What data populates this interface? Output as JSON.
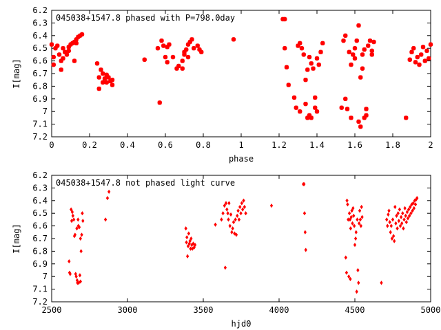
{
  "chart_data": [
    {
      "type": "scatter",
      "title": "045038+1547.8 phased with P=798.0day",
      "xlabel": "phase",
      "ylabel": "I[mag]",
      "xlim": [
        0,
        2
      ],
      "ylim": [
        7.2,
        6.2
      ],
      "y_inverted": true,
      "xticks": [
        "0",
        "0.2",
        "0.4",
        "0.6",
        "0.8",
        "1",
        "1.2",
        "1.4",
        "1.6",
        "1.8",
        "2"
      ],
      "yticks": [
        "6.2",
        "6.3",
        "6.4",
        "6.5",
        "6.6",
        "6.7",
        "6.8",
        "6.9",
        "7",
        "7.1",
        "7.2"
      ],
      "marker": "asterisk",
      "color": "#ff0000",
      "points": [
        [
          0.0,
          6.47
        ],
        [
          0.01,
          6.57
        ],
        [
          0.01,
          6.63
        ],
        [
          0.02,
          6.5
        ],
        [
          0.03,
          6.48
        ],
        [
          0.04,
          6.55
        ],
        [
          0.05,
          6.6
        ],
        [
          0.05,
          6.67
        ],
        [
          0.06,
          6.5
        ],
        [
          0.07,
          6.53
        ],
        [
          0.08,
          6.55
        ],
        [
          0.09,
          6.49
        ],
        [
          0.1,
          6.47
        ],
        [
          0.11,
          6.46
        ],
        [
          0.12,
          6.45
        ],
        [
          0.13,
          6.43
        ],
        [
          0.14,
          6.41
        ],
        [
          0.15,
          6.4
        ],
        [
          0.16,
          6.39
        ],
        [
          0.12,
          6.6
        ],
        [
          0.06,
          6.58
        ],
        [
          0.09,
          6.52
        ],
        [
          0.13,
          6.46
        ],
        [
          0.24,
          6.62
        ],
        [
          0.25,
          6.73
        ],
        [
          0.25,
          6.82
        ],
        [
          0.26,
          6.67
        ],
        [
          0.27,
          6.7
        ],
        [
          0.28,
          6.74
        ],
        [
          0.29,
          6.77
        ],
        [
          0.3,
          6.73
        ],
        [
          0.31,
          6.76
        ],
        [
          0.32,
          6.75
        ],
        [
          0.27,
          6.77
        ],
        [
          0.29,
          6.71
        ],
        [
          0.32,
          6.79
        ],
        [
          0.49,
          6.59
        ],
        [
          0.56,
          6.5
        ],
        [
          0.57,
          6.93
        ],
        [
          0.58,
          6.44
        ],
        [
          0.59,
          6.48
        ],
        [
          0.6,
          6.57
        ],
        [
          0.61,
          6.61
        ],
        [
          0.61,
          6.49
        ],
        [
          0.62,
          6.47
        ],
        [
          0.64,
          6.57
        ],
        [
          0.66,
          6.66
        ],
        [
          0.67,
          6.64
        ],
        [
          0.69,
          6.66
        ],
        [
          0.69,
          6.6
        ],
        [
          0.7,
          6.53
        ],
        [
          0.71,
          6.51
        ],
        [
          0.72,
          6.47
        ],
        [
          0.73,
          6.45
        ],
        [
          0.74,
          6.43
        ],
        [
          0.75,
          6.5
        ],
        [
          0.7,
          6.55
        ],
        [
          0.72,
          6.57
        ],
        [
          0.77,
          6.48
        ],
        [
          0.78,
          6.51
        ],
        [
          0.79,
          6.53
        ],
        [
          0.96,
          6.43
        ],
        [
          1.22,
          6.27
        ],
        [
          1.23,
          6.27
        ],
        [
          1.23,
          6.5
        ],
        [
          1.24,
          6.65
        ],
        [
          1.25,
          6.79
        ],
        [
          1.28,
          6.89
        ],
        [
          1.29,
          6.97
        ],
        [
          1.3,
          6.48
        ],
        [
          1.31,
          6.46
        ],
        [
          1.31,
          7.0
        ],
        [
          1.32,
          6.5
        ],
        [
          1.33,
          6.55
        ],
        [
          1.34,
          6.94
        ],
        [
          1.35,
          7.05
        ],
        [
          1.35,
          6.67
        ],
        [
          1.36,
          7.03
        ],
        [
          1.36,
          6.57
        ],
        [
          1.37,
          7.05
        ],
        [
          1.38,
          6.66
        ],
        [
          1.39,
          6.97
        ],
        [
          1.39,
          6.89
        ],
        [
          1.4,
          7.0
        ],
        [
          1.4,
          6.58
        ],
        [
          1.41,
          6.63
        ],
        [
          1.42,
          6.53
        ],
        [
          1.43,
          6.46
        ],
        [
          1.34,
          6.75
        ],
        [
          1.37,
          6.62
        ],
        [
          1.53,
          6.97
        ],
        [
          1.54,
          6.44
        ],
        [
          1.55,
          6.9
        ],
        [
          1.56,
          6.98
        ],
        [
          1.57,
          6.53
        ],
        [
          1.58,
          7.05
        ],
        [
          1.59,
          6.55
        ],
        [
          1.6,
          6.5
        ],
        [
          1.61,
          6.44
        ],
        [
          1.62,
          6.32
        ],
        [
          1.63,
          7.12
        ],
        [
          1.64,
          6.66
        ],
        [
          1.64,
          6.55
        ],
        [
          1.65,
          6.51
        ],
        [
          1.66,
          6.98
        ],
        [
          1.66,
          7.03
        ],
        [
          1.67,
          6.48
        ],
        [
          1.68,
          6.44
        ],
        [
          1.69,
          6.52
        ],
        [
          1.55,
          6.4
        ],
        [
          1.58,
          6.63
        ],
        [
          1.6,
          6.58
        ],
        [
          1.62,
          7.08
        ],
        [
          1.63,
          6.73
        ],
        [
          1.65,
          7.05
        ],
        [
          1.69,
          6.55
        ],
        [
          1.7,
          6.45
        ],
        [
          1.87,
          7.05
        ],
        [
          1.89,
          6.59
        ],
        [
          1.9,
          6.53
        ],
        [
          1.91,
          6.5
        ],
        [
          1.92,
          6.61
        ],
        [
          1.93,
          6.57
        ],
        [
          1.94,
          6.63
        ],
        [
          1.95,
          6.55
        ],
        [
          1.96,
          6.49
        ],
        [
          1.97,
          6.6
        ],
        [
          1.98,
          6.52
        ],
        [
          1.99,
          6.58
        ],
        [
          2.0,
          6.47
        ]
      ]
    },
    {
      "type": "scatter",
      "title": "045038+1547.8 not phased light curve",
      "xlabel": "hjd0",
      "ylabel": "I[mag]",
      "xlim": [
        2500,
        5000
      ],
      "ylim": [
        7.2,
        6.2
      ],
      "y_inverted": true,
      "xticks": [
        "2500",
        "3000",
        "3500",
        "4000",
        "4500",
        "5000"
      ],
      "yticks": [
        "6.2",
        "6.3",
        "6.4",
        "6.5",
        "6.6",
        "6.7",
        "6.8",
        "6.9",
        "7",
        "7.1",
        "7.2"
      ],
      "marker": "diamond",
      "color": "#ff0000",
      "points": [
        [
          2615,
          6.88
        ],
        [
          2618,
          6.97
        ],
        [
          2622,
          6.98
        ],
        [
          2628,
          6.47
        ],
        [
          2632,
          6.56
        ],
        [
          2636,
          6.49
        ],
        [
          2640,
          6.52
        ],
        [
          2646,
          6.55
        ],
        [
          2650,
          6.68
        ],
        [
          2654,
          6.67
        ],
        [
          2658,
          6.98
        ],
        [
          2662,
          7.0
        ],
        [
          2666,
          6.62
        ],
        [
          2670,
          7.05
        ],
        [
          2674,
          6.55
        ],
        [
          2678,
          7.05
        ],
        [
          2682,
          6.61
        ],
        [
          2686,
          6.99
        ],
        [
          2690,
          6.7
        ],
        [
          2694,
          6.8
        ],
        [
          2698,
          6.67
        ],
        [
          2702,
          6.5
        ],
        [
          2706,
          6.56
        ],
        [
          2668,
          7.03
        ],
        [
          2676,
          6.6
        ],
        [
          2690,
          7.04
        ],
        [
          2855,
          6.55
        ],
        [
          2868,
          6.38
        ],
        [
          2878,
          6.33
        ],
        [
          3385,
          6.62
        ],
        [
          3389,
          6.73
        ],
        [
          3392,
          6.69
        ],
        [
          3396,
          6.84
        ],
        [
          3400,
          6.76
        ],
        [
          3404,
          6.66
        ],
        [
          3408,
          6.74
        ],
        [
          3412,
          6.72
        ],
        [
          3416,
          6.78
        ],
        [
          3420,
          6.7
        ],
        [
          3424,
          6.75
        ],
        [
          3428,
          6.78
        ],
        [
          3434,
          6.74
        ],
        [
          3440,
          6.77
        ],
        [
          3446,
          6.75
        ],
        [
          3580,
          6.59
        ],
        [
          3620,
          6.55
        ],
        [
          3630,
          6.5
        ],
        [
          3640,
          6.44
        ],
        [
          3645,
          6.93
        ],
        [
          3650,
          6.42
        ],
        [
          3656,
          6.47
        ],
        [
          3662,
          6.5
        ],
        [
          3666,
          6.55
        ],
        [
          3670,
          6.42
        ],
        [
          3676,
          6.6
        ],
        [
          3682,
          6.51
        ],
        [
          3688,
          6.65
        ],
        [
          3694,
          6.62
        ],
        [
          3700,
          6.57
        ],
        [
          3706,
          6.66
        ],
        [
          3712,
          6.55
        ],
        [
          3718,
          6.67
        ],
        [
          3724,
          6.52
        ],
        [
          3730,
          6.48
        ],
        [
          3736,
          6.55
        ],
        [
          3742,
          6.45
        ],
        [
          3748,
          6.5
        ],
        [
          3754,
          6.42
        ],
        [
          3760,
          6.47
        ],
        [
          3766,
          6.4
        ],
        [
          3772,
          6.45
        ],
        [
          3780,
          6.5
        ],
        [
          3950,
          6.44
        ],
        [
          4160,
          6.27
        ],
        [
          4165,
          6.27
        ],
        [
          4168,
          6.5
        ],
        [
          4172,
          6.65
        ],
        [
          4176,
          6.79
        ],
        [
          4440,
          6.85
        ],
        [
          4445,
          6.97
        ],
        [
          4448,
          6.4
        ],
        [
          4452,
          6.43
        ],
        [
          4456,
          6.55
        ],
        [
          4460,
          7.0
        ],
        [
          4464,
          6.5
        ],
        [
          4468,
          6.55
        ],
        [
          4472,
          6.62
        ],
        [
          4476,
          6.53
        ],
        [
          4480,
          6.48
        ],
        [
          4484,
          6.58
        ],
        [
          4488,
          6.46
        ],
        [
          4492,
          6.52
        ],
        [
          4496,
          6.6
        ],
        [
          4500,
          6.75
        ],
        [
          4505,
          6.7
        ],
        [
          4508,
          6.65
        ],
        [
          4512,
          7.12
        ],
        [
          4516,
          6.55
        ],
        [
          4520,
          6.95
        ],
        [
          4524,
          7.05
        ],
        [
          4528,
          6.58
        ],
        [
          4532,
          6.48
        ],
        [
          4536,
          6.55
        ],
        [
          4540,
          6.6
        ],
        [
          4544,
          6.45
        ],
        [
          4548,
          6.53
        ],
        [
          4470,
          7.02
        ],
        [
          4675,
          7.05
        ],
        [
          4710,
          6.55
        ],
        [
          4715,
          6.6
        ],
        [
          4720,
          6.51
        ],
        [
          4725,
          6.48
        ],
        [
          4730,
          6.57
        ],
        [
          4735,
          6.65
        ],
        [
          4740,
          6.6
        ],
        [
          4745,
          6.7
        ],
        [
          4750,
          6.55
        ],
        [
          4755,
          6.68
        ],
        [
          4760,
          6.72
        ],
        [
          4765,
          6.45
        ],
        [
          4770,
          6.58
        ],
        [
          4775,
          6.52
        ],
        [
          4780,
          6.62
        ],
        [
          4785,
          6.5
        ],
        [
          4790,
          6.56
        ],
        [
          4795,
          6.47
        ],
        [
          4800,
          6.6
        ],
        [
          4805,
          6.53
        ],
        [
          4810,
          6.58
        ],
        [
          4815,
          6.5
        ],
        [
          4820,
          6.62
        ],
        [
          4825,
          6.55
        ],
        [
          4830,
          6.46
        ],
        [
          4835,
          6.52
        ],
        [
          4840,
          6.57
        ],
        [
          4845,
          6.49
        ],
        [
          4850,
          6.54
        ],
        [
          4855,
          6.47
        ],
        [
          4860,
          6.52
        ],
        [
          4865,
          6.45
        ],
        [
          4870,
          6.5
        ],
        [
          4875,
          6.43
        ],
        [
          4880,
          6.48
        ],
        [
          4885,
          6.42
        ],
        [
          4890,
          6.46
        ],
        [
          4895,
          6.4
        ],
        [
          4900,
          6.43
        ],
        [
          4905,
          6.39
        ],
        [
          4910,
          6.38
        ]
      ]
    }
  ]
}
